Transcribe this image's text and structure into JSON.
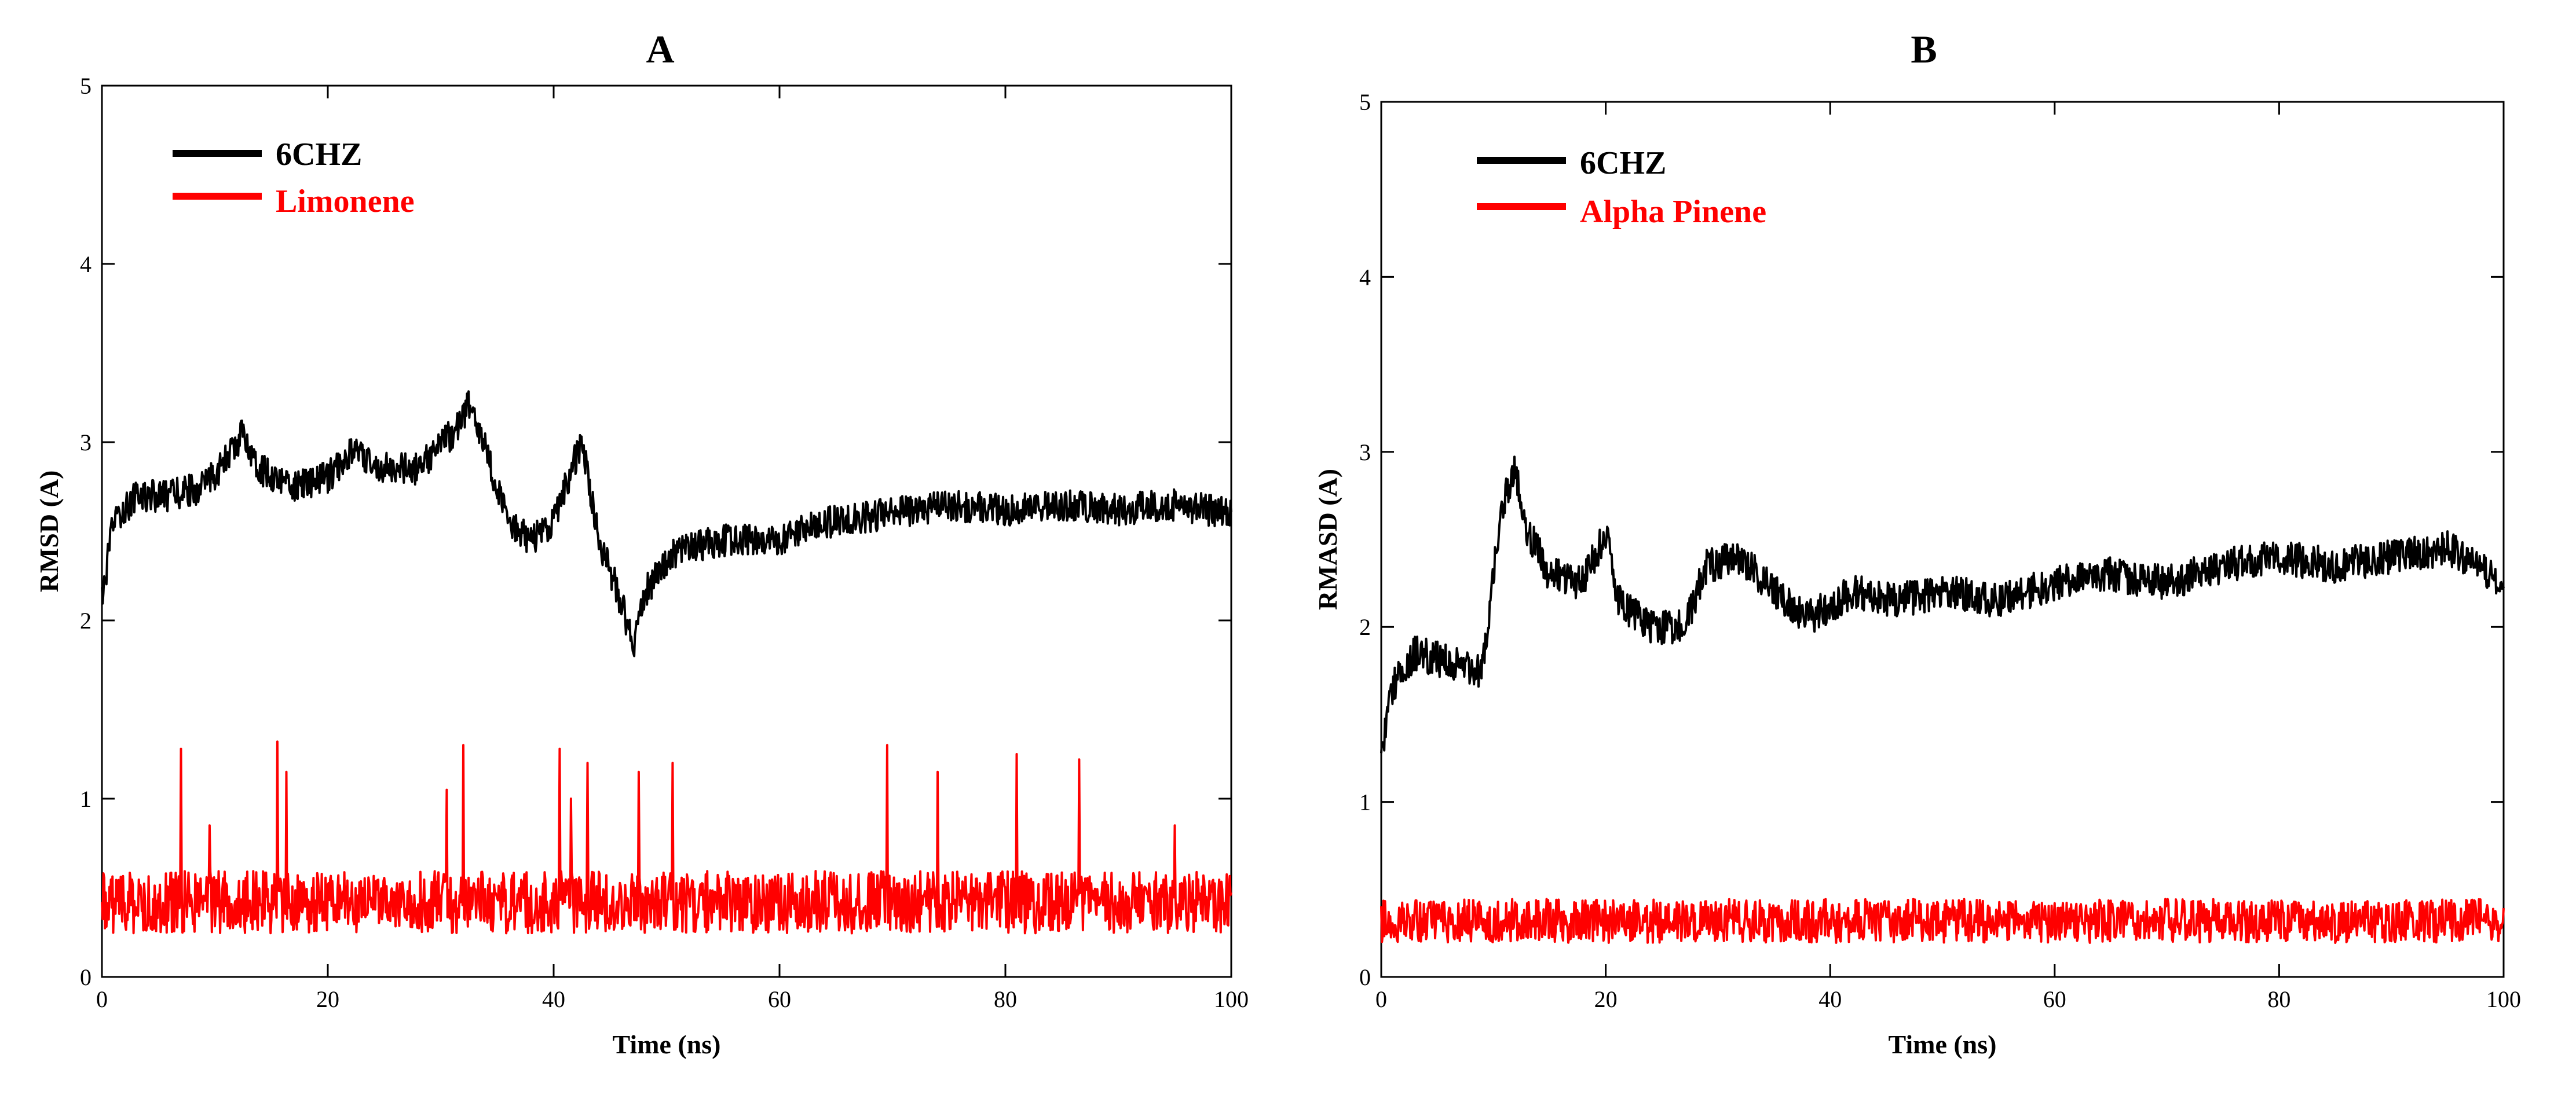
{
  "chart_data": [
    {
      "panel": "A",
      "type": "line",
      "title": "",
      "xlabel": "Time (ns)",
      "ylabel": "RMSD (A)",
      "xlim": [
        0,
        100
      ],
      "ylim": [
        0,
        5
      ],
      "xticks": [
        0,
        20,
        40,
        60,
        80,
        100
      ],
      "yticks": [
        0,
        1,
        2,
        3,
        4,
        5
      ],
      "legend_position": "top-left",
      "series": [
        {
          "name": "6CHZ",
          "color": "#000000",
          "noise": 0.09,
          "trend": [
            [
              0,
              2.1
            ],
            [
              1,
              2.55
            ],
            [
              3,
              2.7
            ],
            [
              6,
              2.7
            ],
            [
              9,
              2.75
            ],
            [
              11,
              2.9
            ],
            [
              12.5,
              3.05
            ],
            [
              14,
              2.85
            ],
            [
              17,
              2.75
            ],
            [
              20,
              2.8
            ],
            [
              22,
              2.95
            ],
            [
              25,
              2.85
            ],
            [
              28,
              2.85
            ],
            [
              31,
              3.05
            ],
            [
              32.5,
              3.2
            ],
            [
              34,
              2.95
            ],
            [
              36,
              2.55
            ],
            [
              38,
              2.45
            ],
            [
              40,
              2.55
            ],
            [
              41,
              2.75
            ],
            [
              42.5,
              3.0
            ],
            [
              44,
              2.45
            ],
            [
              46,
              2.1
            ],
            [
              47,
              1.85
            ],
            [
              48,
              2.15
            ],
            [
              51,
              2.4
            ],
            [
              55,
              2.45
            ],
            [
              60,
              2.45
            ],
            [
              64,
              2.55
            ],
            [
              70,
              2.6
            ],
            [
              75,
              2.65
            ],
            [
              80,
              2.62
            ],
            [
              85,
              2.65
            ],
            [
              90,
              2.62
            ],
            [
              95,
              2.65
            ],
            [
              100,
              2.6
            ]
          ]
        },
        {
          "name": "Limonene",
          "color": "#ff0000",
          "base": 0.42,
          "noise": 0.14,
          "spikes": [
            [
              7,
              1.28
            ],
            [
              9.5,
              0.85
            ],
            [
              15.5,
              1.32
            ],
            [
              16.3,
              1.15
            ],
            [
              30.5,
              1.05
            ],
            [
              32,
              1.3
            ],
            [
              40.5,
              1.28
            ],
            [
              41.5,
              1.0
            ],
            [
              43,
              1.2
            ],
            [
              47.5,
              1.15
            ],
            [
              50.5,
              1.2
            ],
            [
              69.5,
              1.3
            ],
            [
              74,
              1.15
            ],
            [
              81,
              1.25
            ],
            [
              86.5,
              1.22
            ],
            [
              95,
              0.85
            ]
          ]
        }
      ]
    },
    {
      "panel": "B",
      "type": "line",
      "title": "",
      "xlabel": "Time (ns)",
      "ylabel": "RMASD (A)",
      "xlim": [
        0,
        100
      ],
      "ylim": [
        0,
        5
      ],
      "xticks": [
        0,
        20,
        40,
        60,
        80,
        100
      ],
      "yticks": [
        0,
        1,
        2,
        3,
        4,
        5
      ],
      "legend_position": "top-left",
      "series": [
        {
          "name": "6CHZ",
          "color": "#000000",
          "noise": 0.1,
          "trend": [
            [
              0,
              1.3
            ],
            [
              1,
              1.65
            ],
            [
              3,
              1.85
            ],
            [
              6,
              1.8
            ],
            [
              9,
              1.75
            ],
            [
              10,
              2.3
            ],
            [
              11,
              2.75
            ],
            [
              12,
              2.9
            ],
            [
              13,
              2.55
            ],
            [
              15,
              2.3
            ],
            [
              18,
              2.25
            ],
            [
              20,
              2.55
            ],
            [
              21,
              2.15
            ],
            [
              24,
              2.0
            ],
            [
              27,
              2.0
            ],
            [
              29,
              2.35
            ],
            [
              32,
              2.4
            ],
            [
              35,
              2.2
            ],
            [
              38,
              2.05
            ],
            [
              42,
              2.2
            ],
            [
              46,
              2.15
            ],
            [
              50,
              2.2
            ],
            [
              55,
              2.15
            ],
            [
              60,
              2.25
            ],
            [
              65,
              2.3
            ],
            [
              70,
              2.25
            ],
            [
              75,
              2.35
            ],
            [
              80,
              2.4
            ],
            [
              85,
              2.35
            ],
            [
              90,
              2.4
            ],
            [
              95,
              2.45
            ],
            [
              100,
              2.25
            ]
          ]
        },
        {
          "name": "Alpha Pinene",
          "color": "#ff0000",
          "base": 0.32,
          "noise": 0.1,
          "spikes": []
        }
      ]
    }
  ]
}
